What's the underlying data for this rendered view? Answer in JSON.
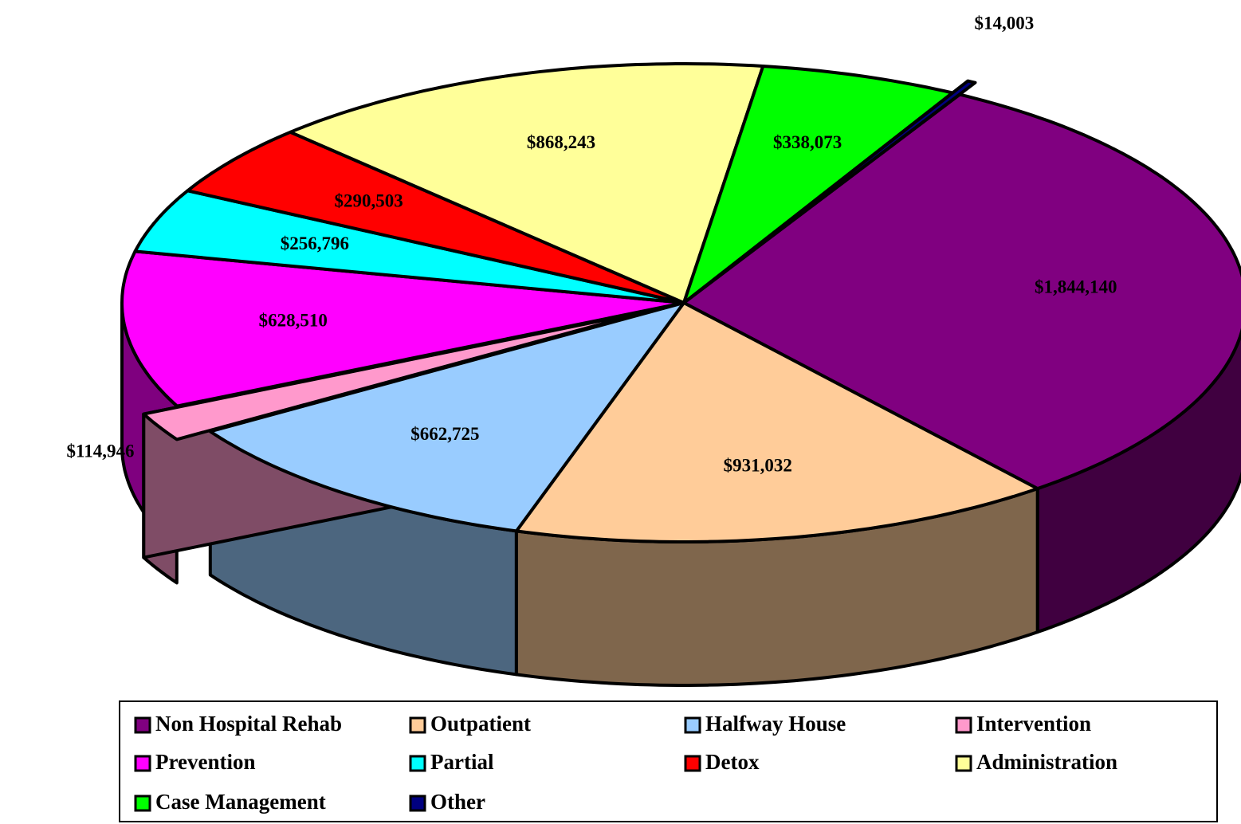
{
  "chart_data": {
    "type": "pie",
    "categories": [
      "Non Hospital Rehab",
      "Outpatient",
      "Halfway House",
      "Intervention",
      "Prevention",
      "Partial",
      "Detox",
      "Administration",
      "Case Management",
      "Other"
    ],
    "values": [
      1844140,
      931032,
      662725,
      114946,
      628510,
      256796,
      290503,
      868243,
      338073,
      14003
    ],
    "value_labels": [
      "$1,844,140",
      "$931,032",
      "$662,725",
      "$114,946",
      "$628,510",
      "$256,796",
      "$290,503",
      "$868,243",
      "$338,073",
      "$14,003"
    ],
    "colors": [
      "#800080",
      "#ffcc99",
      "#99ccff",
      "#ff99cc",
      "#ff00ff",
      "#00ffff",
      "#ff0000",
      "#ffff99",
      "#00ff00",
      "#000080"
    ],
    "legend": "bottom"
  }
}
